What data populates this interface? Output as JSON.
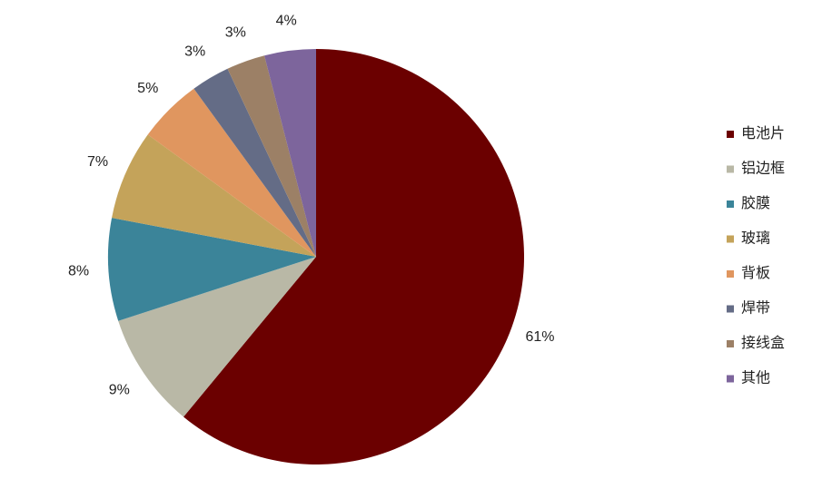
{
  "chart_data": {
    "type": "pie",
    "categories": [
      "电池片",
      "铝边框",
      "胶膜",
      "玻璃",
      "背板",
      "焊带",
      "接线盒",
      "其他"
    ],
    "values": [
      61,
      9,
      8,
      7,
      5,
      3,
      3,
      4
    ],
    "value_labels": [
      "61%",
      "9%",
      "8%",
      "7%",
      "5%",
      "3%",
      "3%",
      "4%"
    ],
    "colors": [
      "#6b0000",
      "#b9b8a6",
      "#3b8499",
      "#c4a35a",
      "#e0965f",
      "#646c86",
      "#9c8066",
      "#7d659c"
    ],
    "legend": "right"
  }
}
